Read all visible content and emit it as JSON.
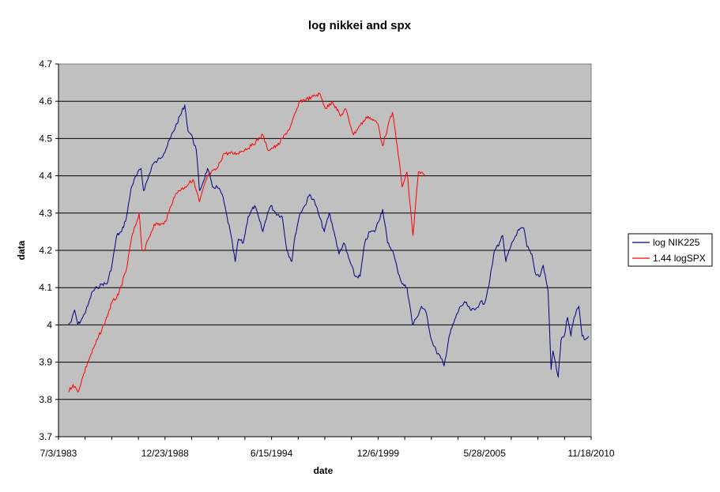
{
  "chart_data": {
    "type": "line",
    "title": "log nikkei and spx",
    "xlabel": "date",
    "ylabel": "data",
    "x_tick_labels": [
      "7/3/1983",
      "12/23/1988",
      "6/15/1994",
      "12/6/1999",
      "5/28/2005",
      "11/18/2010"
    ],
    "xlim": [
      "1983-07-03",
      "2010-11-18"
    ],
    "ylim": [
      3.7,
      4.7
    ],
    "y_tick_labels": [
      "3.7",
      "3.8",
      "3.9",
      "4",
      "4.1",
      "4.2",
      "4.3",
      "4.4",
      "4.5",
      "4.6",
      "4.7"
    ],
    "grid": true,
    "legend_position": "right",
    "plot_background": "#c0c0c0",
    "series": [
      {
        "name": "log NIK225",
        "color": "#000080",
        "points": [
          [
            "1984-01-01",
            4.0
          ],
          [
            "1984-03-01",
            4.01
          ],
          [
            "1984-05-01",
            4.04
          ],
          [
            "1984-07-01",
            4.0
          ],
          [
            "1984-10-01",
            4.02
          ],
          [
            "1985-01-01",
            4.05
          ],
          [
            "1985-04-01",
            4.09
          ],
          [
            "1985-07-01",
            4.1
          ],
          [
            "1985-10-01",
            4.11
          ],
          [
            "1986-01-01",
            4.11
          ],
          [
            "1986-04-01",
            4.16
          ],
          [
            "1986-07-01",
            4.24
          ],
          [
            "1986-10-01",
            4.25
          ],
          [
            "1987-01-01",
            4.29
          ],
          [
            "1987-04-01",
            4.37
          ],
          [
            "1987-07-01",
            4.4
          ],
          [
            "1987-10-01",
            4.42
          ],
          [
            "1987-11-15",
            4.36
          ],
          [
            "1988-02-01",
            4.39
          ],
          [
            "1988-05-01",
            4.43
          ],
          [
            "1988-08-01",
            4.44
          ],
          [
            "1988-12-01",
            4.46
          ],
          [
            "1989-04-01",
            4.5
          ],
          [
            "1989-08-01",
            4.54
          ],
          [
            "1989-12-29",
            4.59
          ],
          [
            "1990-03-01",
            4.52
          ],
          [
            "1990-05-01",
            4.51
          ],
          [
            "1990-08-01",
            4.47
          ],
          [
            "1990-10-01",
            4.36
          ],
          [
            "1990-12-01",
            4.38
          ],
          [
            "1991-03-01",
            4.42
          ],
          [
            "1991-06-01",
            4.37
          ],
          [
            "1991-09-01",
            4.37
          ],
          [
            "1991-12-01",
            4.35
          ],
          [
            "1992-03-01",
            4.29
          ],
          [
            "1992-05-01",
            4.25
          ],
          [
            "1992-08-01",
            4.17
          ],
          [
            "1992-10-01",
            4.23
          ],
          [
            "1993-01-01",
            4.22
          ],
          [
            "1993-04-01",
            4.29
          ],
          [
            "1993-08-01",
            4.32
          ],
          [
            "1993-11-01",
            4.28
          ],
          [
            "1994-01-01",
            4.25
          ],
          [
            "1994-04-01",
            4.3
          ],
          [
            "1994-06-01",
            4.32
          ],
          [
            "1994-09-01",
            4.3
          ],
          [
            "1995-01-01",
            4.29
          ],
          [
            "1995-04-01",
            4.2
          ],
          [
            "1995-07-01",
            4.17
          ],
          [
            "1995-09-01",
            4.24
          ],
          [
            "1995-12-01",
            4.3
          ],
          [
            "1996-03-01",
            4.32
          ],
          [
            "1996-06-01",
            4.35
          ],
          [
            "1996-09-01",
            4.33
          ],
          [
            "1996-12-01",
            4.29
          ],
          [
            "1997-03-01",
            4.25
          ],
          [
            "1997-06-01",
            4.3
          ],
          [
            "1997-09-01",
            4.25
          ],
          [
            "1997-12-01",
            4.19
          ],
          [
            "1998-03-01",
            4.22
          ],
          [
            "1998-06-01",
            4.18
          ],
          [
            "1998-10-01",
            4.13
          ],
          [
            "1999-01-01",
            4.13
          ],
          [
            "1999-04-01",
            4.22
          ],
          [
            "1999-07-01",
            4.25
          ],
          [
            "1999-10-01",
            4.25
          ],
          [
            "2000-03-01",
            4.31
          ],
          [
            "2000-06-01",
            4.22
          ],
          [
            "2000-09-01",
            4.2
          ],
          [
            "2000-12-01",
            4.15
          ],
          [
            "2001-03-01",
            4.11
          ],
          [
            "2001-06-01",
            4.1
          ],
          [
            "2001-09-15",
            4.0
          ],
          [
            "2001-12-01",
            4.02
          ],
          [
            "2002-03-01",
            4.05
          ],
          [
            "2002-06-01",
            4.03
          ],
          [
            "2002-09-01",
            3.96
          ],
          [
            "2002-12-01",
            3.93
          ],
          [
            "2003-03-01",
            3.91
          ],
          [
            "2003-04-28",
            3.89
          ],
          [
            "2003-08-01",
            3.97
          ],
          [
            "2003-12-01",
            4.02
          ],
          [
            "2004-03-01",
            4.05
          ],
          [
            "2004-06-01",
            4.06
          ],
          [
            "2004-09-01",
            4.04
          ],
          [
            "2004-12-01",
            4.04
          ],
          [
            "2005-03-01",
            4.06
          ],
          [
            "2005-06-01",
            4.06
          ],
          [
            "2005-09-01",
            4.12
          ],
          [
            "2005-12-01",
            4.2
          ],
          [
            "2006-03-01",
            4.22
          ],
          [
            "2006-05-01",
            4.24
          ],
          [
            "2006-07-01",
            4.17
          ],
          [
            "2006-10-01",
            4.21
          ],
          [
            "2007-02-01",
            4.25
          ],
          [
            "2007-06-01",
            4.26
          ],
          [
            "2007-08-01",
            4.21
          ],
          [
            "2007-11-01",
            4.19
          ],
          [
            "2008-01-01",
            4.14
          ],
          [
            "2008-04-01",
            4.13
          ],
          [
            "2008-06-01",
            4.16
          ],
          [
            "2008-09-01",
            4.09
          ],
          [
            "2008-10-27",
            3.88
          ],
          [
            "2008-12-01",
            3.93
          ],
          [
            "2009-03-10",
            3.86
          ],
          [
            "2009-05-01",
            3.96
          ],
          [
            "2009-07-01",
            3.97
          ],
          [
            "2009-09-01",
            4.02
          ],
          [
            "2009-11-01",
            3.97
          ],
          [
            "2010-01-01",
            4.02
          ],
          [
            "2010-04-01",
            4.05
          ],
          [
            "2010-06-01",
            3.97
          ],
          [
            "2010-08-01",
            3.96
          ],
          [
            "2010-10-01",
            3.97
          ]
        ]
      },
      {
        "name": "1.44 logSPX",
        "color": "#ff0000",
        "points": [
          [
            "1984-01-01",
            3.82
          ],
          [
            "1984-04-01",
            3.84
          ],
          [
            "1984-07-01",
            3.82
          ],
          [
            "1984-10-01",
            3.86
          ],
          [
            "1985-01-01",
            3.9
          ],
          [
            "1985-06-01",
            3.95
          ],
          [
            "1985-12-01",
            4.01
          ],
          [
            "1986-04-01",
            4.06
          ],
          [
            "1986-08-01",
            4.08
          ],
          [
            "1987-01-01",
            4.15
          ],
          [
            "1987-04-01",
            4.23
          ],
          [
            "1987-08-25",
            4.3
          ],
          [
            "1987-10-19",
            4.2
          ],
          [
            "1987-12-01",
            4.2
          ],
          [
            "1988-06-01",
            4.27
          ],
          [
            "1988-12-01",
            4.27
          ],
          [
            "1989-03-01",
            4.3
          ],
          [
            "1989-06-01",
            4.34
          ],
          [
            "1989-09-01",
            4.36
          ],
          [
            "1990-01-01",
            4.37
          ],
          [
            "1990-06-01",
            4.39
          ],
          [
            "1990-10-01",
            4.33
          ],
          [
            "1991-03-01",
            4.4
          ],
          [
            "1991-09-01",
            4.42
          ],
          [
            "1992-01-01",
            4.46
          ],
          [
            "1992-09-01",
            4.46
          ],
          [
            "1993-06-01",
            4.48
          ],
          [
            "1994-01-01",
            4.51
          ],
          [
            "1994-04-01",
            4.47
          ],
          [
            "1994-10-01",
            4.48
          ],
          [
            "1995-06-01",
            4.53
          ],
          [
            "1995-12-01",
            4.6
          ],
          [
            "1996-07-01",
            4.61
          ],
          [
            "1996-12-01",
            4.62
          ],
          [
            "1997-04-01",
            4.58
          ],
          [
            "1997-08-01",
            4.6
          ],
          [
            "1998-01-01",
            4.56
          ],
          [
            "1998-04-01",
            4.58
          ],
          [
            "1998-09-01",
            4.51
          ],
          [
            "1998-12-01",
            4.53
          ],
          [
            "1999-06-01",
            4.56
          ],
          [
            "1999-12-01",
            4.54
          ],
          [
            "2000-03-01",
            4.48
          ],
          [
            "2000-06-01",
            4.53
          ],
          [
            "2000-09-01",
            4.57
          ],
          [
            "2000-12-01",
            4.48
          ],
          [
            "2001-03-01",
            4.37
          ],
          [
            "2001-06-01",
            4.41
          ],
          [
            "2001-09-21",
            4.24
          ],
          [
            "2002-01-01",
            4.41
          ],
          [
            "2002-05-01",
            4.4
          ]
        ]
      }
    ]
  }
}
